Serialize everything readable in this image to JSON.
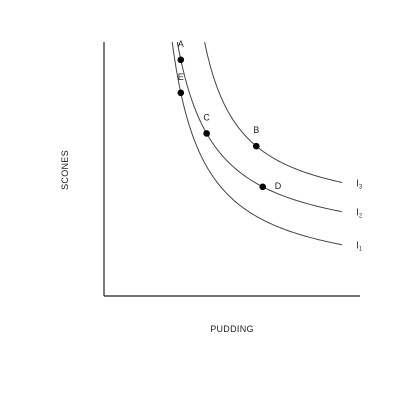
{
  "chart_data": {
    "type": "line",
    "title": "",
    "xlabel": "PUDDING",
    "ylabel": "SCONES",
    "xlim": [
      0,
      100
    ],
    "ylim": [
      0,
      100
    ],
    "grid": false,
    "legend": "none",
    "series": [
      {
        "name": "I",
        "sub": "1",
        "a": 1200,
        "x0": 14,
        "y0": 5,
        "xmax": 93
      },
      {
        "name": "I",
        "sub": "2",
        "a": 1200,
        "x0": 14,
        "y0": 18,
        "xmax": 93
      },
      {
        "name": "I",
        "sub": "3",
        "a": 1000,
        "x0": 25,
        "y0": 30,
        "xmax": 93
      }
    ],
    "points": [
      {
        "label": "A",
        "x": 30,
        "y": 93,
        "curve": 1
      },
      {
        "label": "B",
        "x": 62,
        "y": 59,
        "curve": 2
      },
      {
        "label": "C",
        "x": 40,
        "y": 64,
        "curve": 1
      },
      {
        "label": "D",
        "x": 61,
        "y": 43,
        "curve": 1
      },
      {
        "label": "E",
        "x": 30,
        "y": 80,
        "curve": 0
      }
    ]
  }
}
